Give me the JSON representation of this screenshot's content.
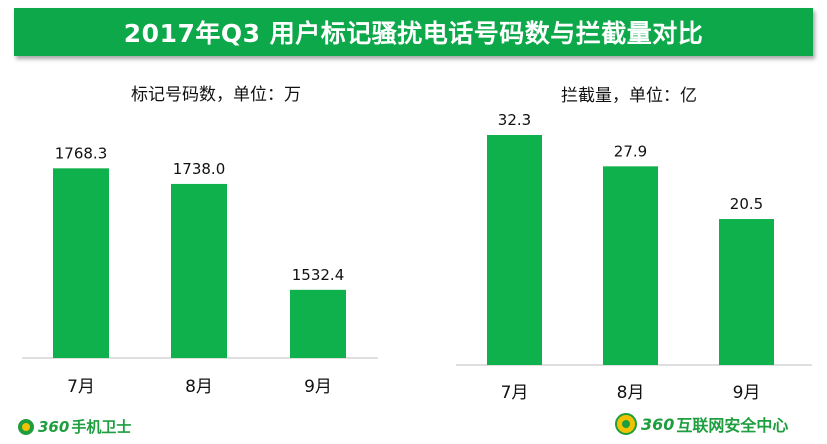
{
  "header": {
    "title": "2017年Q3  用户标记骚扰电话号码数与拦截量对比"
  },
  "chart_data": [
    {
      "type": "bar",
      "title": "标记号码数，单位：万",
      "categories": [
        "7月",
        "8月",
        "9月"
      ],
      "values": [
        1768.3,
        1738.0,
        1532.4
      ],
      "value_labels": [
        "1768.3",
        "1738.0",
        "1532.4"
      ],
      "ylim": [
        1400,
        1800
      ],
      "bar_color": "#0fb14c",
      "grid": false
    },
    {
      "type": "bar",
      "title": "拦截量，单位：亿",
      "categories": [
        "7月",
        "8月",
        "9月"
      ],
      "values": [
        32.3,
        27.9,
        20.5
      ],
      "value_labels": [
        "32.3",
        "27.9",
        "20.5"
      ],
      "ylim": [
        0,
        32.3
      ],
      "bar_color": "#0fb14c",
      "grid": false
    }
  ],
  "footer": {
    "left_logo_number": "360",
    "left_logo_text": "手机卫士",
    "right_logo_number": "360",
    "right_logo_text": "互联网安全中心",
    "brand_color": "#1e9e3e"
  }
}
